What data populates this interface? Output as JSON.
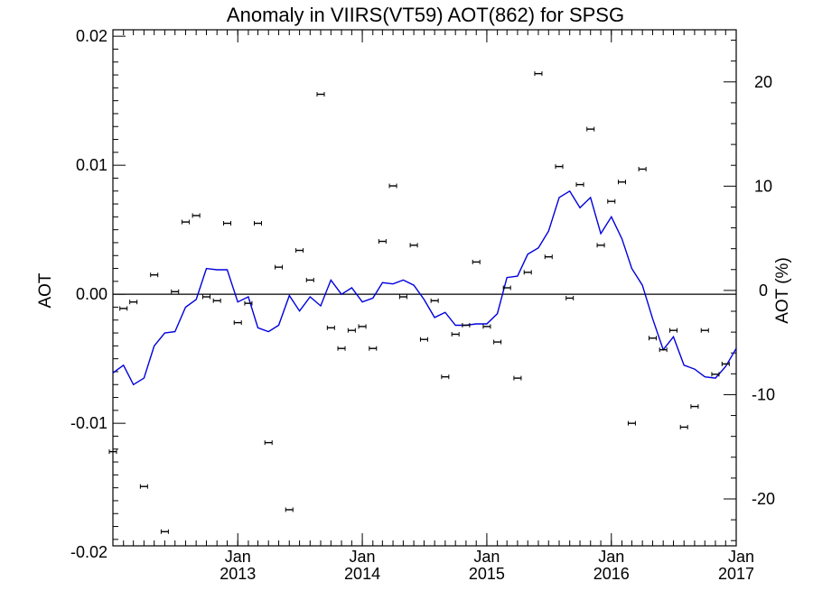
{
  "chart_data": {
    "type": "scatter",
    "title": "Anomaly in VIIRS(VT59) AOT(862) for SPSG",
    "ylabel": "AOT",
    "y2label": "AOT (%)",
    "xlim": [
      "2012-01-01",
      "2017-01-01"
    ],
    "ylim": [
      -0.0195,
      0.0205
    ],
    "y2lim": [
      -24.5,
      25
    ],
    "x_ticks": [
      {
        "date": "2013-01-01",
        "month": "Jan",
        "year": "2013"
      },
      {
        "date": "2014-01-01",
        "month": "Jan",
        "year": "2014"
      },
      {
        "date": "2015-01-01",
        "month": "Jan",
        "year": "2015"
      },
      {
        "date": "2016-01-01",
        "month": "Jan",
        "year": "2016"
      },
      {
        "date": "2017-01-01",
        "month": "Jan",
        "year": "2017"
      }
    ],
    "y_ticks": [
      {
        "value": 0.02,
        "label": "0.02"
      },
      {
        "value": 0.01,
        "label": "0.01"
      },
      {
        "value": 0.0,
        "label": "0.00"
      },
      {
        "value": -0.01,
        "label": "-0.01"
      },
      {
        "value": -0.02,
        "label": "-0.02"
      }
    ],
    "y2_ticks": [
      {
        "value": 20,
        "label": "20"
      },
      {
        "value": 10,
        "label": "10"
      },
      {
        "value": 0,
        "label": "0"
      },
      {
        "value": -10,
        "label": "-10"
      },
      {
        "value": -20,
        "label": "-20"
      }
    ],
    "reference_line": 0,
    "grid": false,
    "colors": {
      "points": "#000000",
      "line": "#0000dd",
      "axes": "#000000"
    },
    "series": [
      {
        "type": "scatter-errorbar",
        "points": [
          {
            "x": "2012-01-01",
            "y": -0.0122
          },
          {
            "x": "2012-02-01",
            "y": -0.0011
          },
          {
            "x": "2012-03-01",
            "y": -0.0006
          },
          {
            "x": "2012-04-01",
            "y": -0.0149
          },
          {
            "x": "2012-05-01",
            "y": 0.0015
          },
          {
            "x": "2012-06-01",
            "y": -0.0184
          },
          {
            "x": "2012-07-01",
            "y": 0.0002
          },
          {
            "x": "2012-08-01",
            "y": 0.0056
          },
          {
            "x": "2012-09-01",
            "y": 0.0061
          },
          {
            "x": "2012-10-01",
            "y": -0.0002
          },
          {
            "x": "2012-11-01",
            "y": -0.0005
          },
          {
            "x": "2012-12-01",
            "y": 0.0055
          },
          {
            "x": "2013-01-01",
            "y": -0.0022
          },
          {
            "x": "2013-02-01",
            "y": -0.0007
          },
          {
            "x": "2013-03-01",
            "y": 0.0055
          },
          {
            "x": "2013-04-01",
            "y": -0.0115
          },
          {
            "x": "2013-05-01",
            "y": 0.0021
          },
          {
            "x": "2013-06-01",
            "y": -0.0167
          },
          {
            "x": "2013-07-01",
            "y": 0.0034
          },
          {
            "x": "2013-08-01",
            "y": 0.0011
          },
          {
            "x": "2013-09-01",
            "y": 0.0155
          },
          {
            "x": "2013-10-01",
            "y": -0.0026
          },
          {
            "x": "2013-11-01",
            "y": -0.0042
          },
          {
            "x": "2013-12-01",
            "y": -0.0028
          },
          {
            "x": "2014-01-01",
            "y": -0.0025
          },
          {
            "x": "2014-02-01",
            "y": -0.0042
          },
          {
            "x": "2014-03-01",
            "y": 0.0041
          },
          {
            "x": "2014-04-01",
            "y": 0.0084
          },
          {
            "x": "2014-05-01",
            "y": -0.0002
          },
          {
            "x": "2014-06-01",
            "y": 0.0038
          },
          {
            "x": "2014-07-01",
            "y": -0.0035
          },
          {
            "x": "2014-08-01",
            "y": -0.0005
          },
          {
            "x": "2014-09-01",
            "y": -0.0064
          },
          {
            "x": "2014-10-01",
            "y": -0.0031
          },
          {
            "x": "2014-11-01",
            "y": -0.0024
          },
          {
            "x": "2014-12-01",
            "y": 0.0025
          },
          {
            "x": "2015-01-01",
            "y": -0.0025
          },
          {
            "x": "2015-02-01",
            "y": -0.0037
          },
          {
            "x": "2015-03-01",
            "y": 0.0005
          },
          {
            "x": "2015-04-01",
            "y": -0.0065
          },
          {
            "x": "2015-05-01",
            "y": 0.0017
          },
          {
            "x": "2015-06-01",
            "y": 0.0171
          },
          {
            "x": "2015-07-01",
            "y": 0.0029
          },
          {
            "x": "2015-08-01",
            "y": 0.0099
          },
          {
            "x": "2015-09-01",
            "y": -0.0003
          },
          {
            "x": "2015-10-01",
            "y": 0.0085
          },
          {
            "x": "2015-11-01",
            "y": 0.0128
          },
          {
            "x": "2015-12-01",
            "y": 0.0038
          },
          {
            "x": "2016-01-01",
            "y": 0.0072
          },
          {
            "x": "2016-02-01",
            "y": 0.0087
          },
          {
            "x": "2016-03-01",
            "y": -0.01
          },
          {
            "x": "2016-04-01",
            "y": 0.0097
          },
          {
            "x": "2016-05-01",
            "y": -0.0034
          },
          {
            "x": "2016-06-01",
            "y": -0.0043
          },
          {
            "x": "2016-07-01",
            "y": -0.0028
          },
          {
            "x": "2016-08-01",
            "y": -0.0103
          },
          {
            "x": "2016-09-01",
            "y": -0.0087
          },
          {
            "x": "2016-10-01",
            "y": -0.0028
          },
          {
            "x": "2016-11-01",
            "y": -0.0062
          },
          {
            "x": "2016-12-01",
            "y": -0.0054
          }
        ]
      },
      {
        "type": "line",
        "points": [
          {
            "x": "2012-01-01",
            "y": -0.0061
          },
          {
            "x": "2012-02-01",
            "y": -0.0055
          },
          {
            "x": "2012-03-01",
            "y": -0.007
          },
          {
            "x": "2012-04-01",
            "y": -0.0065
          },
          {
            "x": "2012-05-01",
            "y": -0.004
          },
          {
            "x": "2012-06-01",
            "y": -0.003
          },
          {
            "x": "2012-07-01",
            "y": -0.0029
          },
          {
            "x": "2012-08-01",
            "y": -0.001
          },
          {
            "x": "2012-09-01",
            "y": -0.0004
          },
          {
            "x": "2012-10-01",
            "y": 0.002
          },
          {
            "x": "2012-11-01",
            "y": 0.0019
          },
          {
            "x": "2012-12-01",
            "y": 0.0019
          },
          {
            "x": "2013-01-01",
            "y": -0.0006
          },
          {
            "x": "2013-02-01",
            "y": -0.0002
          },
          {
            "x": "2013-03-01",
            "y": -0.0026
          },
          {
            "x": "2013-04-01",
            "y": -0.0029
          },
          {
            "x": "2013-05-01",
            "y": -0.0024
          },
          {
            "x": "2013-06-01",
            "y": -0.0001
          },
          {
            "x": "2013-07-01",
            "y": -0.0013
          },
          {
            "x": "2013-08-01",
            "y": -0.0002
          },
          {
            "x": "2013-09-01",
            "y": -0.0009
          },
          {
            "x": "2013-10-01",
            "y": 0.0011
          },
          {
            "x": "2013-11-01",
            "y": 0.0
          },
          {
            "x": "2013-12-01",
            "y": 0.0005
          },
          {
            "x": "2014-01-01",
            "y": -0.0006
          },
          {
            "x": "2014-02-01",
            "y": -0.0003
          },
          {
            "x": "2014-03-01",
            "y": 0.0009
          },
          {
            "x": "2014-04-01",
            "y": 0.0008
          },
          {
            "x": "2014-05-01",
            "y": 0.0011
          },
          {
            "x": "2014-06-01",
            "y": 0.0007
          },
          {
            "x": "2014-07-01",
            "y": -0.0004
          },
          {
            "x": "2014-08-01",
            "y": -0.0018
          },
          {
            "x": "2014-09-01",
            "y": -0.0014
          },
          {
            "x": "2014-10-01",
            "y": -0.0024
          },
          {
            "x": "2014-11-01",
            "y": -0.0024
          },
          {
            "x": "2014-12-01",
            "y": -0.0023
          },
          {
            "x": "2015-01-01",
            "y": -0.0023
          },
          {
            "x": "2015-02-01",
            "y": -0.0015
          },
          {
            "x": "2015-03-01",
            "y": 0.0013
          },
          {
            "x": "2015-04-01",
            "y": 0.0014
          },
          {
            "x": "2015-05-01",
            "y": 0.0031
          },
          {
            "x": "2015-06-01",
            "y": 0.0036
          },
          {
            "x": "2015-07-01",
            "y": 0.0049
          },
          {
            "x": "2015-08-01",
            "y": 0.0075
          },
          {
            "x": "2015-09-01",
            "y": 0.008
          },
          {
            "x": "2015-10-01",
            "y": 0.0067
          },
          {
            "x": "2015-11-01",
            "y": 0.0075
          },
          {
            "x": "2015-12-01",
            "y": 0.0047
          },
          {
            "x": "2016-01-01",
            "y": 0.006
          },
          {
            "x": "2016-02-01",
            "y": 0.0043
          },
          {
            "x": "2016-03-01",
            "y": 0.002
          },
          {
            "x": "2016-04-01",
            "y": 0.0007
          },
          {
            "x": "2016-05-01",
            "y": -0.0019
          },
          {
            "x": "2016-06-01",
            "y": -0.0043
          },
          {
            "x": "2016-07-01",
            "y": -0.0033
          },
          {
            "x": "2016-08-01",
            "y": -0.0055
          },
          {
            "x": "2016-09-01",
            "y": -0.0058
          },
          {
            "x": "2016-10-01",
            "y": -0.0064
          },
          {
            "x": "2016-11-01",
            "y": -0.0065
          },
          {
            "x": "2016-12-01",
            "y": -0.0056
          },
          {
            "x": "2017-01-01",
            "y": -0.0042
          }
        ]
      }
    ]
  }
}
